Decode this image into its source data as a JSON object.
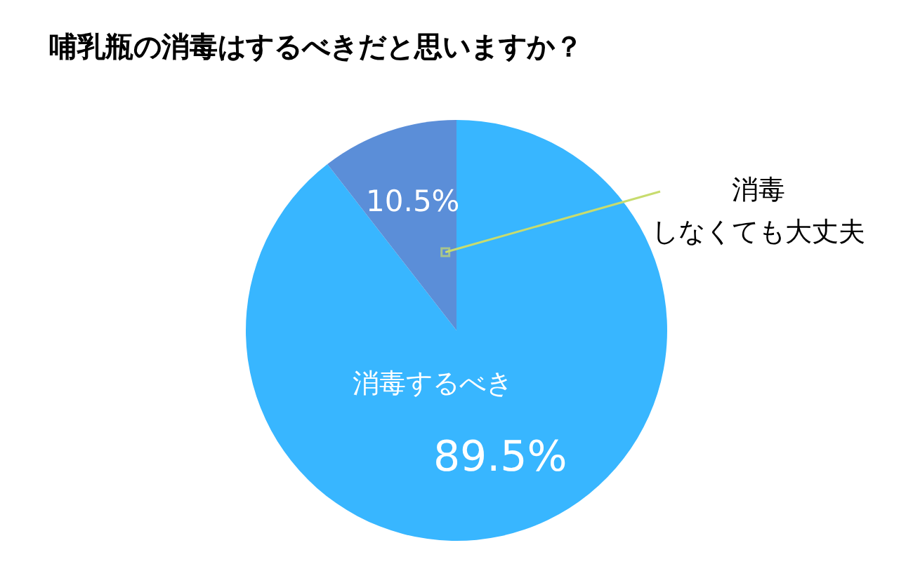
{
  "chart_data": {
    "type": "pie",
    "title": "哺乳瓶の消毒はするべきだと思いますか？",
    "categories": [
      "消毒するべき",
      "消毒しなくても大丈夫"
    ],
    "values": [
      89.5,
      10.5
    ],
    "colors": [
      "#38b6ff",
      "#5b8ed8"
    ],
    "value_labels": [
      "89.5%",
      "10.5%"
    ]
  }
}
